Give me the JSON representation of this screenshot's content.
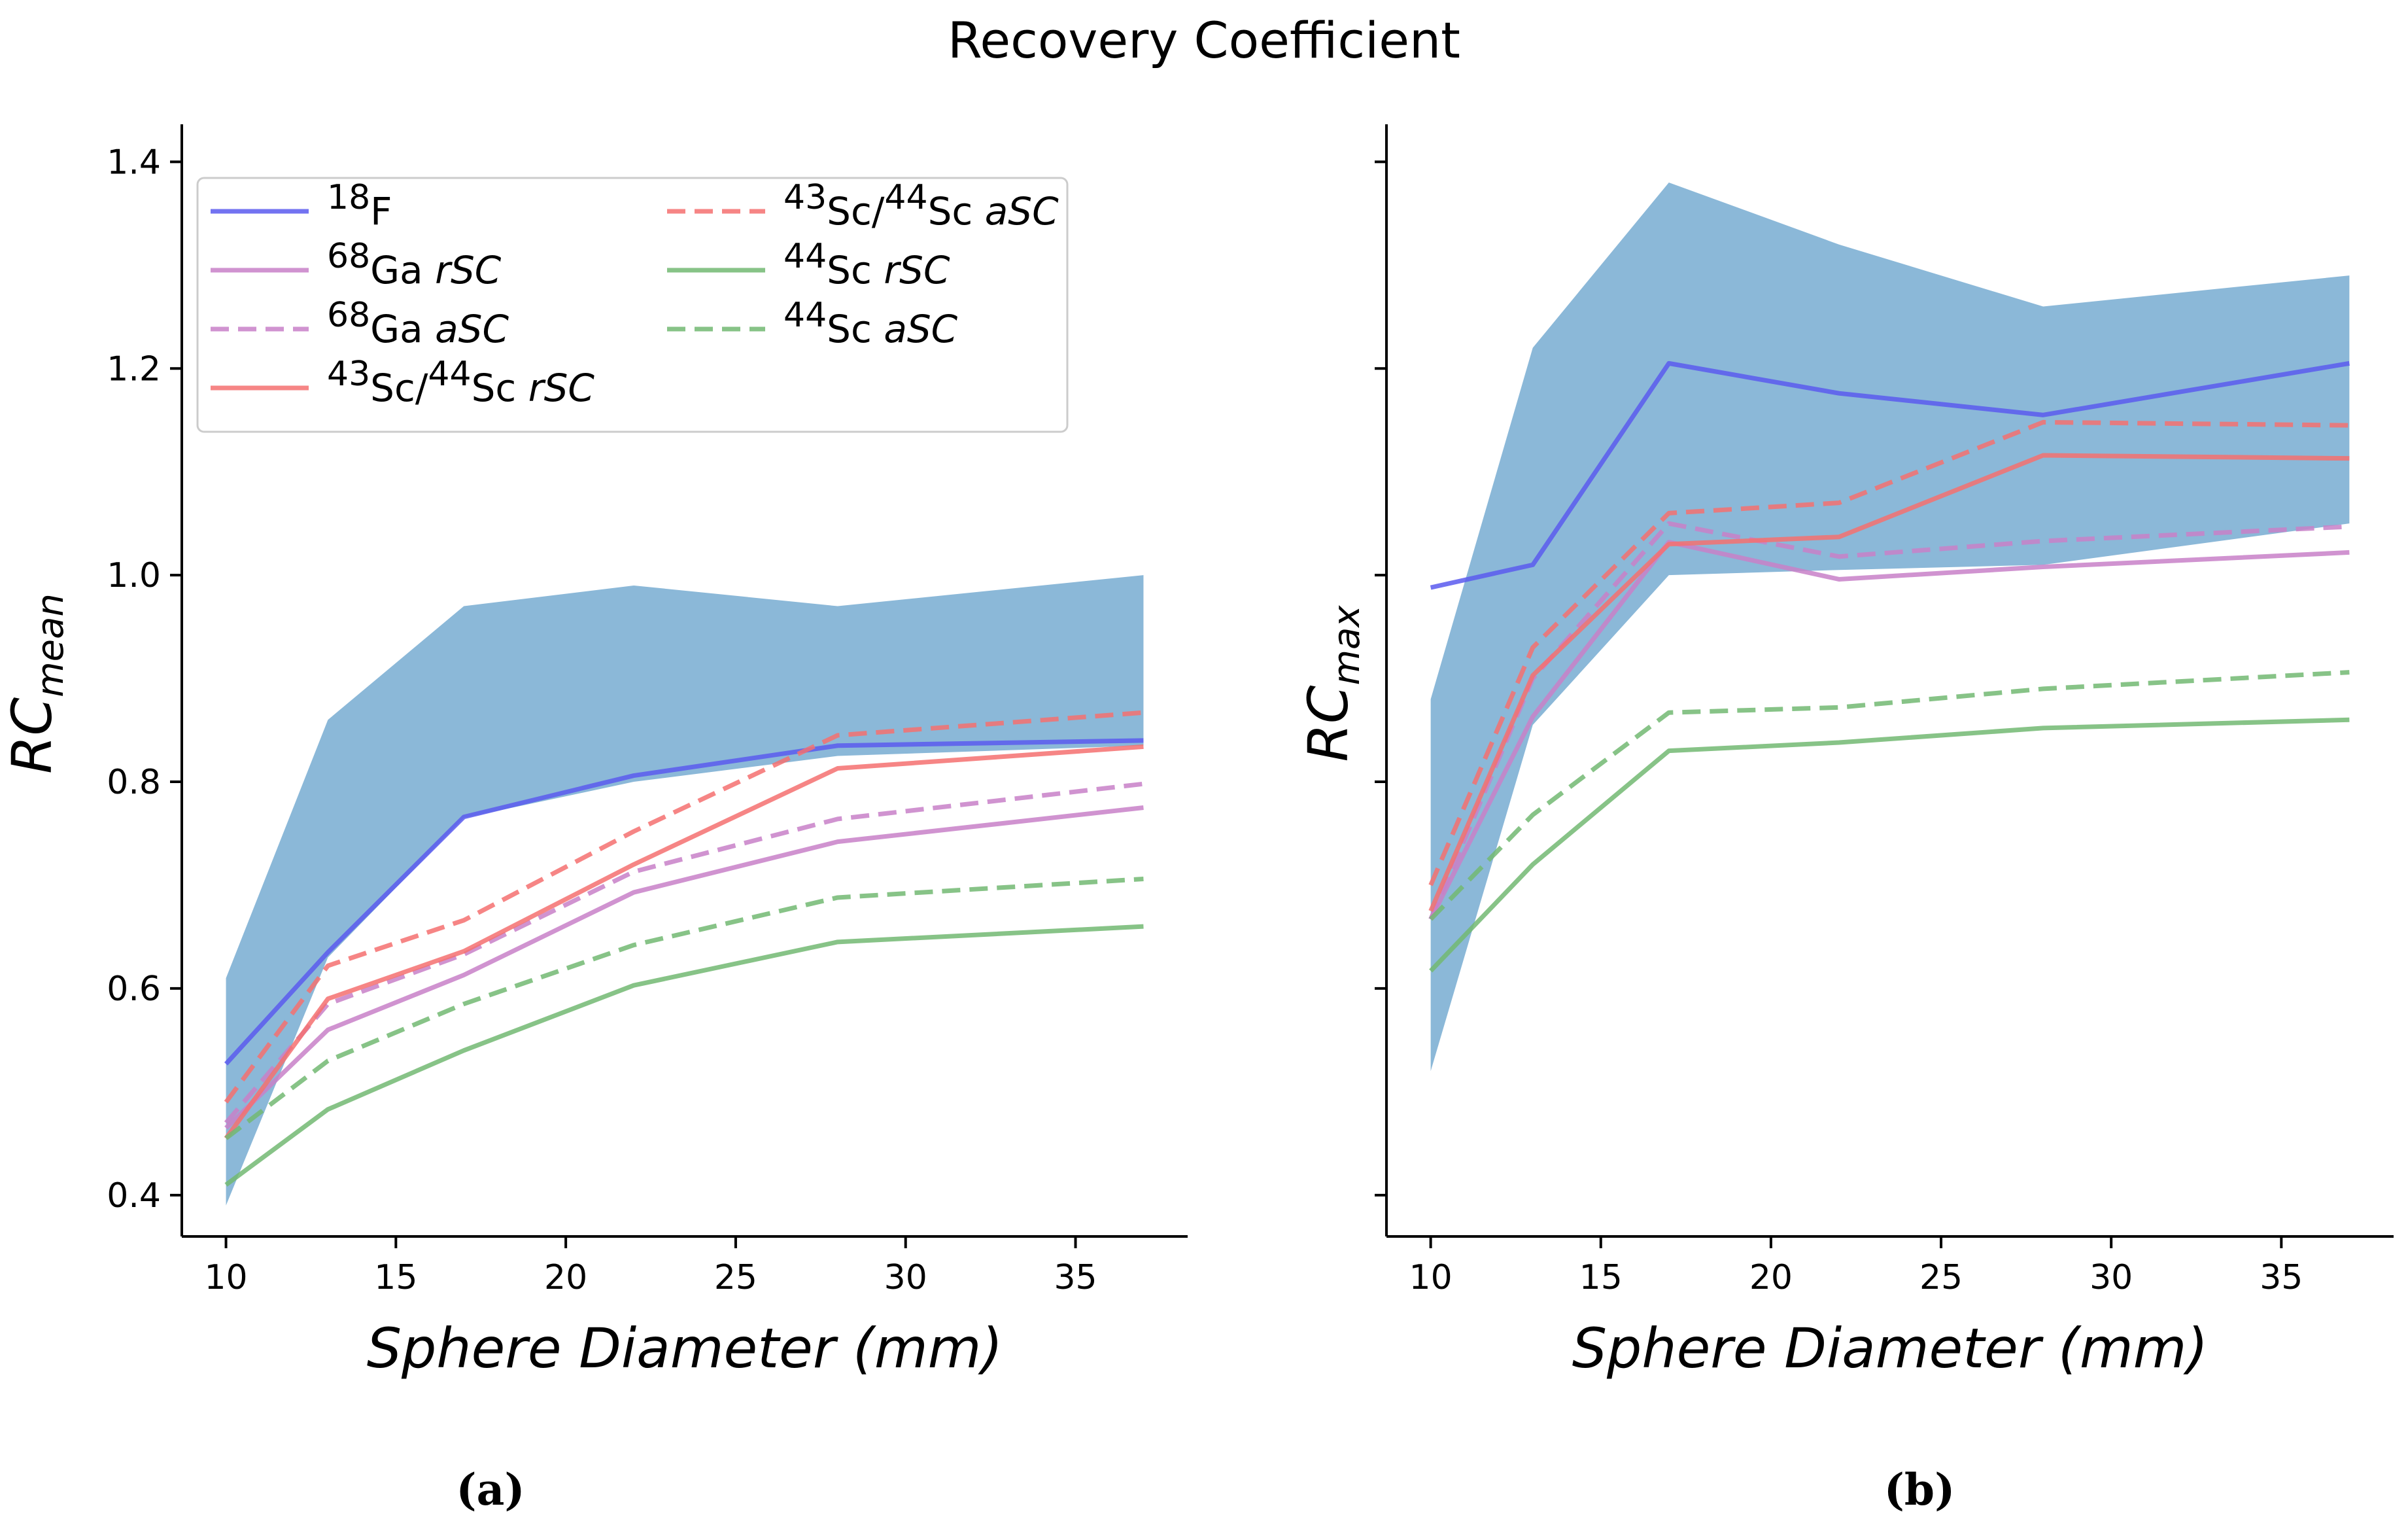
{
  "figure_title": "Recovery Coefficient",
  "chart_data": [
    {
      "type": "line",
      "panel": "a",
      "caption": "(a)",
      "xlabel": "Sphere Diameter (mm)",
      "ylabel_main": "RC",
      "ylabel_sub": "mean",
      "xlim": [
        8.7,
        38.3
      ],
      "ylim": [
        0.36,
        1.43
      ],
      "xticks": [
        10,
        15,
        20,
        25,
        30,
        35
      ],
      "yticks": [
        0.4,
        0.6,
        0.8,
        1.0,
        1.2,
        1.4
      ],
      "ytick_labels": [
        "0.4",
        "0.6",
        "0.8",
        "1.0",
        "1.2",
        "1.4"
      ],
      "x": [
        10,
        13,
        17,
        22,
        28,
        37
      ],
      "band": {
        "color": "#8bb8d8",
        "lower": [
          0.39,
          0.63,
          0.765,
          0.8,
          0.825,
          0.835
        ],
        "upper": [
          0.61,
          0.86,
          0.97,
          0.99,
          0.97,
          1.0
        ]
      },
      "series": [
        {
          "name": "18F",
          "values": [
            0.527,
            0.635,
            0.766,
            0.806,
            0.835,
            0.84
          ]
        },
        {
          "name": "68Ga rSC",
          "values": [
            0.465,
            0.56,
            0.613,
            0.693,
            0.742,
            0.775
          ]
        },
        {
          "name": "68Ga aSC",
          "values": [
            0.47,
            0.585,
            0.633,
            0.713,
            0.764,
            0.798
          ]
        },
        {
          "name": "43Sc/44Sc rSC",
          "values": [
            0.455,
            0.59,
            0.636,
            0.72,
            0.813,
            0.834
          ]
        },
        {
          "name": "43Sc/44Sc aSC",
          "values": [
            0.49,
            0.622,
            0.666,
            0.752,
            0.845,
            0.867
          ]
        },
        {
          "name": "44Sc rSC",
          "values": [
            0.41,
            0.483,
            0.54,
            0.603,
            0.645,
            0.66
          ]
        },
        {
          "name": "44Sc aSC",
          "values": [
            0.455,
            0.53,
            0.585,
            0.642,
            0.688,
            0.706
          ]
        }
      ]
    },
    {
      "type": "line",
      "panel": "b",
      "caption": "(b)",
      "xlabel": "Sphere Diameter (mm)",
      "ylabel_main": "RC",
      "ylabel_sub": "max",
      "xlim": [
        8.7,
        38.3
      ],
      "ylim": [
        0.36,
        1.43
      ],
      "xticks": [
        10,
        15,
        20,
        25,
        30,
        35
      ],
      "yticks": [
        0.4,
        0.6,
        0.8,
        1.0,
        1.2,
        1.4
      ],
      "ytick_labels": [
        "",
        "",
        "",
        "",
        "",
        ""
      ],
      "x": [
        10,
        13,
        17,
        22,
        28,
        37
      ],
      "band": {
        "color": "#8bb8d8",
        "lower": [
          0.52,
          0.855,
          1.0,
          1.005,
          1.01,
          1.05
        ],
        "upper": [
          0.88,
          1.22,
          1.38,
          1.32,
          1.26,
          1.29
        ]
      },
      "series": [
        {
          "name": "18F",
          "values": [
            0.988,
            1.01,
            1.205,
            1.176,
            1.155,
            1.205
          ]
        },
        {
          "name": "68Ga rSC",
          "values": [
            0.667,
            0.863,
            1.032,
            0.996,
            1.008,
            1.022
          ]
        },
        {
          "name": "68Ga aSC",
          "values": [
            0.667,
            0.9,
            1.05,
            1.018,
            1.033,
            1.047
          ]
        },
        {
          "name": "43Sc/44Sc rSC",
          "values": [
            0.675,
            0.903,
            1.03,
            1.037,
            1.116,
            1.113
          ]
        },
        {
          "name": "43Sc/44Sc aSC",
          "values": [
            0.7,
            0.93,
            1.06,
            1.07,
            1.148,
            1.145
          ]
        },
        {
          "name": "44Sc rSC",
          "values": [
            0.617,
            0.72,
            0.83,
            0.838,
            0.852,
            0.86
          ]
        },
        {
          "name": "44Sc aSC",
          "values": [
            0.667,
            0.768,
            0.867,
            0.872,
            0.89,
            0.906
          ]
        }
      ]
    }
  ],
  "legend": {
    "placement": "top-left",
    "columns": 2,
    "entries": [
      {
        "series": "18F",
        "sup": "18",
        "text": "F",
        "italic": "",
        "sup2": "",
        "text2": "",
        "dashed": false,
        "color": "#5b5bee"
      },
      {
        "series": "68Ga rSC",
        "sup": "68",
        "text": "Ga ",
        "italic": "rSC",
        "sup2": "",
        "text2": "",
        "dashed": false,
        "color": "#c880c8"
      },
      {
        "series": "68Ga aSC",
        "sup": "68",
        "text": "Ga ",
        "italic": "aSC",
        "sup2": "",
        "text2": "",
        "dashed": true,
        "color": "#c880c8"
      },
      {
        "series": "43Sc/44Sc rSC",
        "sup": "43",
        "text": "Sc/",
        "sup2": "44",
        "text2": "Sc ",
        "italic": "rSC",
        "dashed": false,
        "color": "#f47070"
      },
      {
        "series": "43Sc/44Sc aSC",
        "sup": "43",
        "text": "Sc/",
        "sup2": "44",
        "text2": "Sc ",
        "italic": "aSC",
        "dashed": true,
        "color": "#f47070"
      },
      {
        "series": "44Sc rSC",
        "sup": "44",
        "text": "Sc ",
        "italic": "rSC",
        "sup2": "",
        "text2": "",
        "dashed": false,
        "color": "#72b872"
      },
      {
        "series": "44Sc aSC",
        "sup": "44",
        "text": "Sc ",
        "italic": "aSC",
        "sup2": "",
        "text2": "",
        "dashed": true,
        "color": "#72b872"
      }
    ]
  }
}
